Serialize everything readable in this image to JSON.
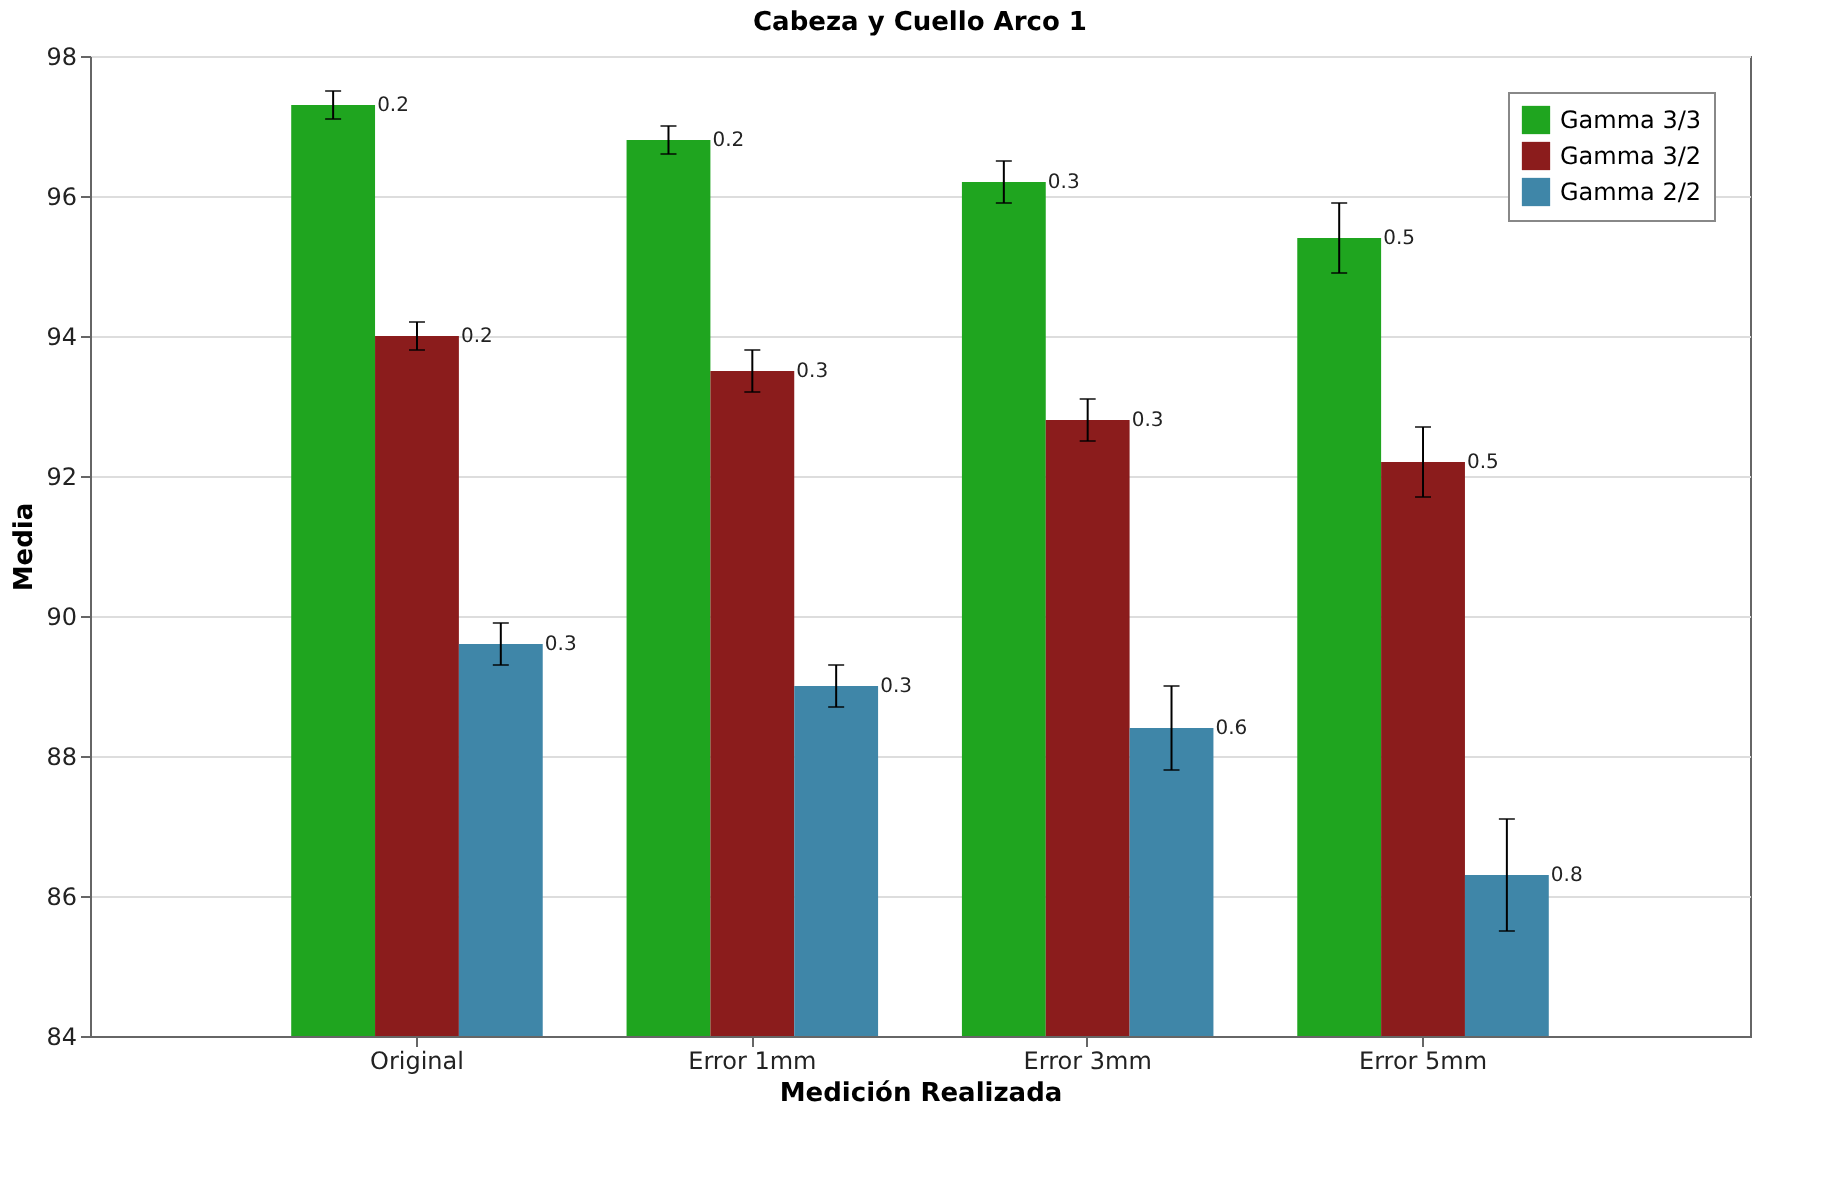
{
  "chart_data": {
    "type": "bar",
    "title": "Cabeza y Cuello Arco 1",
    "xlabel": "Medición Realizada",
    "ylabel": "Media",
    "categories": [
      "Original",
      "Error 1mm",
      "Error 3mm",
      "Error 5mm"
    ],
    "series": [
      {
        "name": "Gamma 3/3",
        "color": "#1fa51f",
        "values": [
          97.3,
          96.8,
          96.2,
          95.4
        ],
        "errors": [
          0.2,
          0.2,
          0.3,
          0.5
        ]
      },
      {
        "name": "Gamma 3/2",
        "color": "#8b1c1c",
        "values": [
          94.0,
          93.5,
          92.8,
          92.2
        ],
        "errors": [
          0.2,
          0.3,
          0.3,
          0.5
        ]
      },
      {
        "name": "Gamma 2/2",
        "color": "#3f86a8",
        "values": [
          89.6,
          89.0,
          88.4,
          86.3
        ],
        "errors": [
          0.3,
          0.3,
          0.6,
          0.8
        ]
      }
    ],
    "annotations": [
      "0.2",
      "0.2",
      "0.3",
      "0.5",
      "0.2",
      "0.3",
      "0.3",
      "0.5",
      "0.3",
      "0.3",
      "0.6",
      "0.8"
    ],
    "ylim": [
      84,
      98
    ],
    "yticks": [
      84,
      86,
      88,
      90,
      92,
      94,
      96,
      98
    ],
    "grid": "y",
    "legend": "top right"
  }
}
